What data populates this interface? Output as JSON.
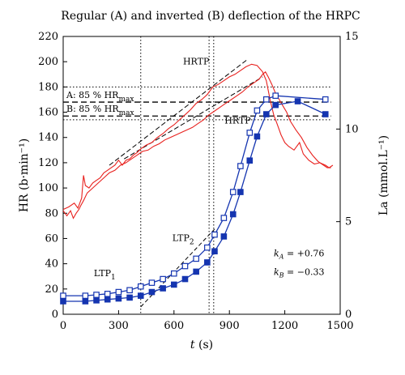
{
  "chart_data": {
    "type": "line",
    "title": "Regular (A) and inverted (B) deflection of the HRPC",
    "xlabel": "t (s)",
    "ylabel_left": "HR (b·min⁻¹)",
    "ylabel_right": "La (mmol.L⁻¹)",
    "xlim": [
      0,
      1500
    ],
    "ylim_left": [
      0,
      220
    ],
    "ylim_right": [
      0,
      15
    ],
    "x_ticks": [
      0,
      300,
      600,
      900,
      1200,
      1500
    ],
    "y_left_ticks": [
      0,
      20,
      40,
      60,
      80,
      100,
      120,
      140,
      160,
      180,
      200,
      220
    ],
    "y_right_ticks": [
      0,
      5,
      10,
      15
    ],
    "hr_max_lines": [
      {
        "label": "A: 85 % HRmax",
        "value": 168
      },
      {
        "label": "B: 85 % HRmax",
        "value": 157
      }
    ],
    "hr_dotted_levels": [
      180,
      154
    ],
    "vertical_markers": [
      {
        "label": "LTP1",
        "x": 420
      },
      {
        "label": "LTP2",
        "x": 790
      },
      {
        "label": "LTP2",
        "x": 815
      }
    ],
    "annotations": [
      {
        "text": "HRTP",
        "at": [
          720,
          198
        ]
      },
      {
        "text": "HRTP",
        "at": [
          945,
          151
        ]
      },
      {
        "text": "LTP1",
        "at": [
          225,
          30
        ]
      },
      {
        "text": "LTP2",
        "at": [
          650,
          58
        ]
      }
    ],
    "k_values": {
      "kA": "kA = +0.76",
      "kB": "kB = −0.33"
    },
    "series": [
      {
        "name": "HR A",
        "axis": "left",
        "color": "#e8211e",
        "x": [
          0,
          30,
          60,
          80,
          100,
          110,
          120,
          140,
          160,
          180,
          200,
          220,
          240,
          260,
          280,
          300,
          320,
          340,
          360,
          380,
          400,
          420,
          450,
          480,
          510,
          540,
          570,
          600,
          630,
          660,
          690,
          720,
          750,
          780,
          810,
          840,
          870,
          900,
          930,
          960,
          990,
          1020,
          1050,
          1080,
          1100,
          1120,
          1140,
          1160,
          1180,
          1200,
          1220,
          1250,
          1280,
          1300,
          1330,
          1360,
          1390,
          1420,
          1440,
          1460
        ],
        "y": [
          83,
          85,
          88,
          84,
          92,
          110,
          102,
          100,
          104,
          106,
          108,
          112,
          114,
          116,
          118,
          122,
          118,
          122,
          123,
          126,
          128,
          131,
          134,
          136,
          140,
          143,
          147,
          150,
          154,
          158,
          162,
          167,
          170,
          174,
          180,
          182,
          185,
          188,
          190,
          193,
          196,
          198,
          197,
          192,
          185,
          170,
          158,
          150,
          142,
          136,
          133,
          130,
          136,
          127,
          122,
          119,
          120,
          118,
          116,
          118
        ]
      },
      {
        "name": "HR B",
        "axis": "left",
        "color": "#e8211e",
        "x": [
          0,
          20,
          40,
          55,
          70,
          85,
          95,
          110,
          130,
          160,
          190,
          220,
          250,
          280,
          310,
          340,
          370,
          400,
          430,
          460,
          490,
          520,
          550,
          580,
          610,
          640,
          670,
          700,
          730,
          760,
          790,
          820,
          850,
          880,
          910,
          940,
          970,
          1000,
          1030,
          1060,
          1080,
          1095,
          1110,
          1130,
          1150,
          1170,
          1190,
          1210,
          1230,
          1260,
          1290,
          1320,
          1350,
          1380,
          1410,
          1430,
          1450
        ],
        "y": [
          82,
          78,
          82,
          76,
          80,
          83,
          86,
          90,
          96,
          100,
          104,
          108,
          112,
          114,
          118,
          120,
          123,
          126,
          129,
          130,
          133,
          135,
          138,
          140,
          142,
          144,
          146,
          148,
          151,
          154,
          158,
          161,
          164,
          167,
          170,
          173,
          176,
          180,
          183,
          186,
          190,
          192,
          188,
          182,
          175,
          170,
          165,
          160,
          153,
          146,
          140,
          132,
          126,
          121,
          118,
          116,
          116
        ]
      },
      {
        "name": "La A",
        "axis": "right",
        "color": "#1535b0",
        "marker": "open-square",
        "x": [
          0,
          120,
          180,
          240,
          300,
          360,
          420,
          480,
          540,
          600,
          660,
          720,
          780,
          820,
          870,
          920,
          960,
          1010,
          1050,
          1100,
          1150,
          1420
        ],
        "y": [
          1.0,
          1.0,
          1.05,
          1.1,
          1.2,
          1.3,
          1.5,
          1.7,
          1.9,
          2.2,
          2.6,
          3.0,
          3.6,
          4.3,
          5.2,
          6.6,
          8.0,
          9.8,
          11.0,
          11.6,
          11.8,
          11.6
        ]
      },
      {
        "name": "La B",
        "axis": "right",
        "color": "#1535b0",
        "marker": "filled-square",
        "x": [
          0,
          120,
          180,
          240,
          300,
          360,
          420,
          480,
          540,
          600,
          660,
          720,
          780,
          820,
          870,
          920,
          960,
          1010,
          1050,
          1100,
          1150,
          1270,
          1420
        ],
        "y": [
          0.7,
          0.7,
          0.75,
          0.8,
          0.85,
          0.9,
          1.0,
          1.2,
          1.4,
          1.6,
          1.9,
          2.3,
          2.8,
          3.4,
          4.2,
          5.4,
          6.6,
          8.3,
          9.6,
          10.8,
          11.3,
          11.5,
          10.8
        ]
      }
    ]
  }
}
